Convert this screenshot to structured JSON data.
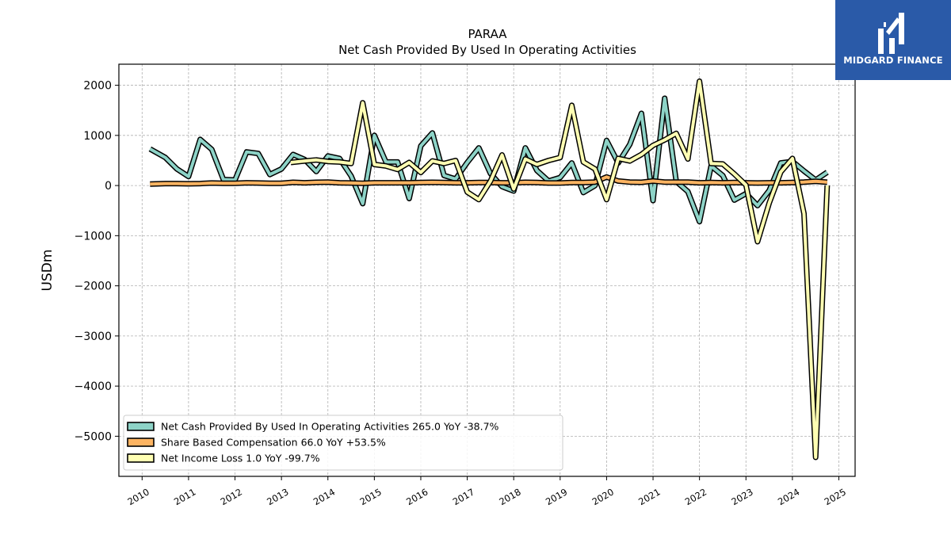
{
  "brand": {
    "name": "MIDGARD FINANCE",
    "icon": "midgard-logo-icon",
    "color": "#2a5aa8"
  },
  "chart_data": {
    "type": "line",
    "title": "PARAA",
    "subtitle": "Net Cash Provided By Used In Operating Activities",
    "ylabel": "USDm",
    "xlabel": "",
    "xlim": [
      2009.5,
      2025.35
    ],
    "ylim": [
      -5800,
      2420
    ],
    "yticks": [
      -5000,
      -4000,
      -3000,
      -2000,
      -1000,
      0,
      1000,
      2000
    ],
    "xticks": [
      2010,
      2011,
      2012,
      2013,
      2014,
      2015,
      2016,
      2017,
      2018,
      2019,
      2020,
      2021,
      2022,
      2023,
      2024,
      2025
    ],
    "grid": true,
    "legend_position": "lower-left",
    "series": [
      {
        "name": "Net Cash Provided By Used In Operating Activities  265.0 YoY -38.7%",
        "color": "#8dd3c7",
        "points": [
          [
            2010.17,
            730
          ],
          [
            2010.5,
            560
          ],
          [
            2010.75,
            330
          ],
          [
            2011.0,
            180
          ],
          [
            2011.25,
            920
          ],
          [
            2011.5,
            720
          ],
          [
            2011.75,
            120
          ],
          [
            2012.0,
            110
          ],
          [
            2012.25,
            670
          ],
          [
            2012.5,
            640
          ],
          [
            2012.75,
            220
          ],
          [
            2013.0,
            330
          ],
          [
            2013.25,
            620
          ],
          [
            2013.5,
            520
          ],
          [
            2013.75,
            280
          ],
          [
            2014.0,
            590
          ],
          [
            2014.25,
            540
          ],
          [
            2014.5,
            190
          ],
          [
            2014.75,
            -360
          ],
          [
            2015.0,
            1000
          ],
          [
            2015.25,
            470
          ],
          [
            2015.5,
            470
          ],
          [
            2015.75,
            -260
          ],
          [
            2016.0,
            790
          ],
          [
            2016.25,
            1050
          ],
          [
            2016.5,
            200
          ],
          [
            2016.75,
            130
          ],
          [
            2017.0,
            460
          ],
          [
            2017.25,
            750
          ],
          [
            2017.5,
            240
          ],
          [
            2017.75,
            -20
          ],
          [
            2018.0,
            -110
          ],
          [
            2018.25,
            750
          ],
          [
            2018.5,
            300
          ],
          [
            2018.75,
            90
          ],
          [
            2019.0,
            160
          ],
          [
            2019.25,
            450
          ],
          [
            2019.5,
            -140
          ],
          [
            2019.75,
            0
          ],
          [
            2020.0,
            900
          ],
          [
            2020.25,
            450
          ],
          [
            2020.5,
            820
          ],
          [
            2020.75,
            1440
          ],
          [
            2021.0,
            -300
          ],
          [
            2021.25,
            1740
          ],
          [
            2021.5,
            80
          ],
          [
            2021.75,
            -120
          ],
          [
            2022.0,
            -720
          ],
          [
            2022.25,
            390
          ],
          [
            2022.5,
            200
          ],
          [
            2022.75,
            -290
          ],
          [
            2023.0,
            -160
          ],
          [
            2023.25,
            -400
          ],
          [
            2023.5,
            -100
          ],
          [
            2023.75,
            450
          ],
          [
            2024.0,
            480
          ],
          [
            2024.25,
            290
          ],
          [
            2024.5,
            110
          ],
          [
            2024.75,
            265
          ]
        ]
      },
      {
        "name": "Share Based Compensation  66.0 YoY +53.5%",
        "color": "#fdb462",
        "points": [
          [
            2010.17,
            30
          ],
          [
            2010.5,
            40
          ],
          [
            2010.75,
            40
          ],
          [
            2011.0,
            35
          ],
          [
            2011.25,
            40
          ],
          [
            2011.5,
            50
          ],
          [
            2011.75,
            45
          ],
          [
            2012.0,
            45
          ],
          [
            2012.25,
            55
          ],
          [
            2012.5,
            50
          ],
          [
            2012.75,
            45
          ],
          [
            2013.0,
            45
          ],
          [
            2013.25,
            65
          ],
          [
            2013.5,
            55
          ],
          [
            2013.75,
            65
          ],
          [
            2014.0,
            70
          ],
          [
            2014.25,
            55
          ],
          [
            2014.5,
            50
          ],
          [
            2014.75,
            45
          ],
          [
            2015.0,
            55
          ],
          [
            2015.25,
            55
          ],
          [
            2015.5,
            55
          ],
          [
            2015.75,
            55
          ],
          [
            2016.0,
            60
          ],
          [
            2016.25,
            65
          ],
          [
            2016.5,
            60
          ],
          [
            2016.75,
            55
          ],
          [
            2017.0,
            55
          ],
          [
            2017.25,
            60
          ],
          [
            2017.5,
            60
          ],
          [
            2017.75,
            55
          ],
          [
            2018.0,
            55
          ],
          [
            2018.25,
            65
          ],
          [
            2018.5,
            60
          ],
          [
            2018.75,
            50
          ],
          [
            2019.0,
            50
          ],
          [
            2019.25,
            60
          ],
          [
            2019.5,
            60
          ],
          [
            2019.75,
            70
          ],
          [
            2020.0,
            170
          ],
          [
            2020.25,
            90
          ],
          [
            2020.5,
            70
          ],
          [
            2020.75,
            65
          ],
          [
            2021.0,
            90
          ],
          [
            2021.25,
            70
          ],
          [
            2021.5,
            70
          ],
          [
            2021.75,
            70
          ],
          [
            2022.0,
            55
          ],
          [
            2022.25,
            60
          ],
          [
            2022.5,
            55
          ],
          [
            2022.75,
            60
          ],
          [
            2023.0,
            55
          ],
          [
            2023.25,
            50
          ],
          [
            2023.5,
            55
          ],
          [
            2023.75,
            55
          ],
          [
            2024.0,
            60
          ],
          [
            2024.25,
            70
          ],
          [
            2024.5,
            85
          ],
          [
            2024.75,
            66
          ]
        ]
      },
      {
        "name": "Net Income Loss  1.0 YoY -99.7%",
        "color": "#ffffb3",
        "points": [
          [
            2013.2,
            460
          ],
          [
            2013.5,
            490
          ],
          [
            2013.75,
            510
          ],
          [
            2014.0,
            480
          ],
          [
            2014.25,
            470
          ],
          [
            2014.5,
            440
          ],
          [
            2014.75,
            1650
          ],
          [
            2015.0,
            420
          ],
          [
            2015.25,
            390
          ],
          [
            2015.5,
            320
          ],
          [
            2015.75,
            460
          ],
          [
            2016.0,
            260
          ],
          [
            2016.25,
            490
          ],
          [
            2016.5,
            440
          ],
          [
            2016.75,
            500
          ],
          [
            2017.0,
            -130
          ],
          [
            2017.25,
            -280
          ],
          [
            2017.5,
            90
          ],
          [
            2017.75,
            610
          ],
          [
            2018.0,
            -70
          ],
          [
            2018.25,
            530
          ],
          [
            2018.5,
            420
          ],
          [
            2018.75,
            500
          ],
          [
            2019.0,
            560
          ],
          [
            2019.25,
            1600
          ],
          [
            2019.5,
            470
          ],
          [
            2019.75,
            330
          ],
          [
            2020.0,
            -280
          ],
          [
            2020.25,
            540
          ],
          [
            2020.5,
            490
          ],
          [
            2020.75,
            620
          ],
          [
            2021.0,
            800
          ],
          [
            2021.25,
            910
          ],
          [
            2021.5,
            1040
          ],
          [
            2021.75,
            530
          ],
          [
            2022.0,
            2080
          ],
          [
            2022.25,
            440
          ],
          [
            2022.5,
            430
          ],
          [
            2022.75,
            230
          ],
          [
            2023.0,
            10
          ],
          [
            2023.25,
            -1120
          ],
          [
            2023.5,
            -350
          ],
          [
            2023.75,
            270
          ],
          [
            2024.0,
            540
          ],
          [
            2024.25,
            -560
          ],
          [
            2024.5,
            -5420
          ],
          [
            2024.75,
            1
          ]
        ]
      }
    ]
  }
}
